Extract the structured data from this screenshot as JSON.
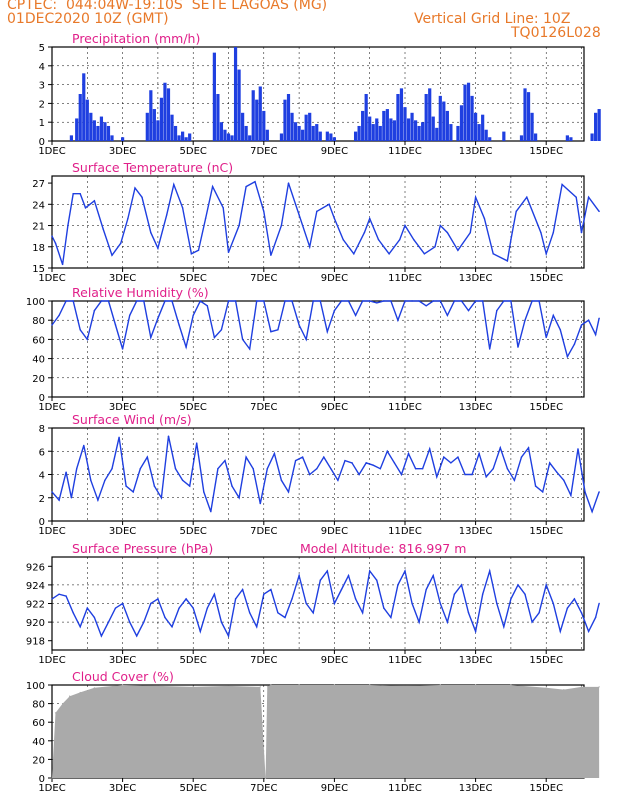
{
  "header": {
    "line1": "CPTEC:  044:04W-19:10S  SETE LAGOAS (MG)",
    "line2": "01DEC2020 10Z (GMT)",
    "right1": "Vertical Grid Line: 10Z",
    "right2": "TQ0126L028",
    "altitude": "Model Altitude: 816.997 m"
  },
  "x_ticks": [
    "1DEC",
    "3DEC",
    "5DEC",
    "7DEC",
    "9DEC",
    "11DEC",
    "13DEC",
    "15DEC"
  ],
  "colors": {
    "series": "#1f3fe0",
    "title": "#e0208a",
    "header": "#e8792a",
    "cloud": "#aaaaaa"
  },
  "chart_data": [
    {
      "type": "bar",
      "title": "Precipitation (mm/h)",
      "ylim": [
        0,
        5
      ],
      "yticks": [
        0,
        1,
        2,
        3,
        4,
        5
      ],
      "x_days": [
        0,
        15.5
      ],
      "x": [
        0.55,
        0.7,
        0.8,
        0.9,
        1.0,
        1.1,
        1.2,
        1.3,
        1.4,
        1.5,
        1.6,
        1.7,
        2.0,
        2.7,
        2.8,
        2.9,
        3.0,
        3.1,
        3.2,
        3.3,
        3.4,
        3.5,
        3.6,
        3.7,
        3.8,
        3.9,
        4.6,
        4.7,
        4.8,
        4.9,
        5.0,
        5.1,
        5.2,
        5.3,
        5.4,
        5.5,
        5.6,
        5.7,
        5.8,
        5.9,
        6.0,
        6.1,
        6.5,
        6.6,
        6.7,
        6.8,
        6.9,
        7.0,
        7.1,
        7.2,
        7.3,
        7.4,
        7.5,
        7.6,
        7.8,
        7.9,
        8.0,
        8.6,
        8.7,
        8.8,
        8.9,
        9.0,
        9.1,
        9.2,
        9.3,
        9.4,
        9.5,
        9.6,
        9.7,
        9.8,
        9.9,
        10.0,
        10.1,
        10.2,
        10.3,
        10.4,
        10.5,
        10.6,
        10.7,
        10.8,
        10.9,
        11.0,
        11.1,
        11.2,
        11.3,
        11.5,
        11.6,
        11.7,
        11.8,
        11.9,
        12.0,
        12.1,
        12.2,
        12.3,
        12.4,
        12.8,
        13.3,
        13.4,
        13.5,
        13.6,
        13.7,
        14.6,
        14.7,
        15.3,
        15.4,
        15.5
      ],
      "values": [
        0.3,
        1.2,
        2.5,
        3.6,
        2.2,
        1.5,
        1.1,
        0.8,
        1.3,
        1.0,
        0.8,
        0.3,
        0.2,
        1.5,
        2.7,
        1.7,
        1.1,
        2.3,
        3.1,
        2.8,
        1.4,
        0.8,
        0.3,
        0.5,
        0.2,
        0.4,
        4.7,
        2.5,
        1.0,
        0.6,
        0.4,
        0.3,
        5.0,
        3.8,
        1.5,
        0.8,
        0.3,
        2.7,
        2.2,
        2.9,
        1.6,
        0.6,
        0.4,
        2.2,
        2.5,
        1.5,
        1.0,
        0.8,
        0.6,
        1.4,
        1.5,
        0.8,
        0.9,
        0.5,
        0.5,
        0.4,
        0.2,
        0.5,
        0.8,
        1.6,
        2.5,
        1.3,
        0.9,
        1.2,
        0.8,
        1.6,
        1.7,
        1.2,
        1.1,
        2.5,
        2.8,
        1.8,
        1.2,
        1.5,
        1.1,
        0.8,
        1.0,
        2.5,
        2.8,
        1.3,
        0.7,
        2.4,
        2.1,
        1.6,
        0.9,
        0.8,
        1.9,
        3.0,
        3.1,
        2.4,
        1.5,
        0.9,
        1.4,
        0.6,
        0.2,
        0.5,
        0.3,
        2.8,
        2.6,
        1.5,
        0.4,
        0.3,
        0.2,
        0.4,
        1.5,
        1.7
      ]
    },
    {
      "type": "line",
      "title": "Surface Temperature (nC)",
      "ylim": [
        15,
        28
      ],
      "yticks": [
        15,
        18,
        21,
        24,
        27
      ],
      "x": [
        0,
        0.1,
        0.3,
        0.45,
        0.6,
        0.8,
        0.95,
        1.2,
        1.45,
        1.7,
        1.95,
        2.15,
        2.35,
        2.55,
        2.8,
        3.0,
        3.25,
        3.45,
        3.7,
        3.95,
        4.15,
        4.35,
        4.55,
        4.85,
        5.0,
        5.3,
        5.5,
        5.75,
        6.0,
        6.2,
        6.5,
        6.7,
        7.0,
        7.3,
        7.5,
        7.85,
        8.0,
        8.25,
        8.55,
        8.85,
        9.0,
        9.25,
        9.55,
        9.85,
        10.0,
        10.25,
        10.55,
        10.85,
        11.0,
        11.2,
        11.5,
        11.85,
        12.0,
        12.25,
        12.5,
        12.9,
        13.0,
        13.15,
        13.45,
        13.85,
        14.0,
        14.2,
        14.45,
        14.85,
        15.0,
        15.2,
        15.5
      ],
      "values": [
        19.5,
        18.5,
        15.5,
        21,
        25.5,
        25.5,
        23.5,
        24.5,
        20.5,
        16.8,
        18.5,
        22,
        26.3,
        25,
        20,
        17.8,
        22.5,
        26.8,
        23.5,
        17,
        17.5,
        22,
        26.5,
        23.5,
        17.2,
        21,
        26.5,
        27.2,
        23,
        16.8,
        21,
        27,
        22.5,
        18,
        23,
        24,
        22,
        19,
        17,
        20,
        22,
        19,
        17,
        19,
        21,
        19,
        17,
        18,
        21,
        20,
        17.5,
        20,
        25,
        22,
        17,
        16,
        19,
        23,
        25,
        20,
        17,
        20,
        26.8,
        25,
        20,
        25,
        23
      ]
    },
    {
      "type": "line",
      "title": "Relative Humidity (%)",
      "ylim": [
        0,
        100
      ],
      "yticks": [
        0,
        20,
        40,
        60,
        80,
        100
      ],
      "x": [
        0,
        0.2,
        0.4,
        0.6,
        0.8,
        1.0,
        1.2,
        1.4,
        1.6,
        1.8,
        2.0,
        2.2,
        2.4,
        2.6,
        2.8,
        3.0,
        3.2,
        3.4,
        3.6,
        3.8,
        4.0,
        4.2,
        4.4,
        4.6,
        4.8,
        5.0,
        5.2,
        5.4,
        5.6,
        5.8,
        6.0,
        6.2,
        6.4,
        6.6,
        6.8,
        7.0,
        7.2,
        7.4,
        7.6,
        7.8,
        8.0,
        8.2,
        8.4,
        8.6,
        8.8,
        9.0,
        9.2,
        9.4,
        9.6,
        9.8,
        10.0,
        10.2,
        10.4,
        10.6,
        10.8,
        11.0,
        11.2,
        11.4,
        11.6,
        11.8,
        12.0,
        12.2,
        12.4,
        12.6,
        12.8,
        13.0,
        13.2,
        13.4,
        13.6,
        13.8,
        14.0,
        14.2,
        14.4,
        14.6,
        14.8,
        15.0,
        15.2,
        15.4,
        15.5
      ],
      "values": [
        75,
        85,
        100,
        100,
        70,
        60,
        90,
        100,
        100,
        75,
        50,
        85,
        100,
        100,
        62,
        82,
        100,
        100,
        75,
        52,
        85,
        100,
        95,
        62,
        70,
        100,
        100,
        60,
        50,
        100,
        100,
        68,
        70,
        100,
        100,
        75,
        60,
        100,
        100,
        68,
        90,
        100,
        100,
        85,
        100,
        100,
        98,
        100,
        100,
        80,
        100,
        100,
        100,
        95,
        100,
        100,
        85,
        100,
        100,
        90,
        100,
        100,
        50,
        90,
        100,
        100,
        52,
        80,
        100,
        100,
        62,
        85,
        70,
        42,
        55,
        75,
        80,
        65,
        82
      ]
    },
    {
      "type": "line",
      "title": "Surface Wind (m/s)",
      "ylim": [
        0,
        8
      ],
      "yticks": [
        0,
        2,
        4,
        6,
        8
      ],
      "x": [
        0,
        0.2,
        0.4,
        0.55,
        0.7,
        0.9,
        1.1,
        1.3,
        1.5,
        1.7,
        1.9,
        2.1,
        2.3,
        2.5,
        2.7,
        2.9,
        3.1,
        3.3,
        3.5,
        3.7,
        3.9,
        4.1,
        4.3,
        4.5,
        4.7,
        4.9,
        5.1,
        5.3,
        5.5,
        5.7,
        5.9,
        6.1,
        6.3,
        6.5,
        6.7,
        6.9,
        7.1,
        7.3,
        7.5,
        7.7,
        7.9,
        8.1,
        8.3,
        8.5,
        8.7,
        8.9,
        9.1,
        9.3,
        9.5,
        9.7,
        9.9,
        10.1,
        10.3,
        10.5,
        10.7,
        10.9,
        11.1,
        11.3,
        11.5,
        11.7,
        11.9,
        12.1,
        12.3,
        12.5,
        12.7,
        12.9,
        13.1,
        13.3,
        13.5,
        13.7,
        13.9,
        14.1,
        14.3,
        14.5,
        14.7,
        14.9,
        15.1,
        15.3,
        15.5
      ],
      "values": [
        2.5,
        1.8,
        4.2,
        2.0,
        4.5,
        6.5,
        3.5,
        1.8,
        3.5,
        4.5,
        7.2,
        3.0,
        2.5,
        4.5,
        5.5,
        3.0,
        2.0,
        7.3,
        4.5,
        3.5,
        3.0,
        6.7,
        2.5,
        0.8,
        4.5,
        5.2,
        3.0,
        2.0,
        5.5,
        4.5,
        1.5,
        4.5,
        5.8,
        3.5,
        2.5,
        5.2,
        5.5,
        4.0,
        4.5,
        5.5,
        4.5,
        3.5,
        5.2,
        5.0,
        4.0,
        5.0,
        4.8,
        4.5,
        6.0,
        5.0,
        4.0,
        5.8,
        4.5,
        4.5,
        6.2,
        3.8,
        5.5,
        5.0,
        5.5,
        4.0,
        4.0,
        5.8,
        3.8,
        4.5,
        6.3,
        4.5,
        3.5,
        5.5,
        6.3,
        3.0,
        2.5,
        5.0,
        4.2,
        3.5,
        2.2,
        6.2,
        2.5,
        0.8,
        2.5
      ]
    },
    {
      "type": "line",
      "title": "Surface Pressure (hPa)",
      "ylim": [
        917,
        927
      ],
      "yticks": [
        918,
        920,
        922,
        924,
        926
      ],
      "x": [
        0,
        0.2,
        0.4,
        0.6,
        0.8,
        1.0,
        1.2,
        1.4,
        1.6,
        1.8,
        2.0,
        2.2,
        2.4,
        2.6,
        2.8,
        3.0,
        3.2,
        3.4,
        3.6,
        3.8,
        4.0,
        4.2,
        4.4,
        4.6,
        4.8,
        5.0,
        5.2,
        5.4,
        5.6,
        5.8,
        6.0,
        6.2,
        6.4,
        6.6,
        6.8,
        7.0,
        7.2,
        7.4,
        7.6,
        7.8,
        8.0,
        8.2,
        8.4,
        8.6,
        8.8,
        9.0,
        9.2,
        9.4,
        9.6,
        9.8,
        10.0,
        10.2,
        10.4,
        10.6,
        10.8,
        11.0,
        11.2,
        11.4,
        11.6,
        11.8,
        12.0,
        12.2,
        12.4,
        12.6,
        12.8,
        13.0,
        13.2,
        13.4,
        13.6,
        13.8,
        14.0,
        14.2,
        14.4,
        14.6,
        14.8,
        15.0,
        15.2,
        15.4,
        15.5
      ],
      "values": [
        922.5,
        923.0,
        922.8,
        921.0,
        919.5,
        921.5,
        920.5,
        918.5,
        920.0,
        921.5,
        922.0,
        920.0,
        918.5,
        920.0,
        922.0,
        922.5,
        920.5,
        919.5,
        921.5,
        922.5,
        921.5,
        919.0,
        921.5,
        923.0,
        920.0,
        918.5,
        922.5,
        923.5,
        921.0,
        919.5,
        923.0,
        923.5,
        921.0,
        920.5,
        922.5,
        925.0,
        922.0,
        921.0,
        924.5,
        925.5,
        922.0,
        923.5,
        925.0,
        922.5,
        921.0,
        925.5,
        924.5,
        921.5,
        920.5,
        924.0,
        925.5,
        922.0,
        920.0,
        923.5,
        925.0,
        922.0,
        920.0,
        923.0,
        924.0,
        921.0,
        919.0,
        923.0,
        925.5,
        922.0,
        919.5,
        922.5,
        924.0,
        923.0,
        920.0,
        921.0,
        924.0,
        922.0,
        919.0,
        921.5,
        922.5,
        921.0,
        919.0,
        920.5,
        922.0
      ]
    },
    {
      "type": "area",
      "title": "Cloud Cover (%)",
      "ylim": [
        0,
        100
      ],
      "yticks": [
        0,
        20,
        40,
        60,
        80,
        100
      ],
      "x": [
        0,
        0.1,
        0.3,
        0.5,
        0.8,
        1.2,
        2.0,
        3.0,
        4.0,
        5.0,
        5.9,
        6.05,
        6.1,
        6.2,
        7.0,
        8.0,
        9.0,
        10.0,
        11.0,
        12.0,
        13.0,
        14.0,
        14.5,
        15.0,
        15.5
      ],
      "values": [
        0,
        70,
        80,
        88,
        92,
        97,
        100,
        99,
        98,
        99,
        98,
        0,
        99,
        100,
        100,
        100,
        100,
        99,
        100,
        100,
        100,
        97,
        95,
        98,
        98
      ]
    }
  ]
}
